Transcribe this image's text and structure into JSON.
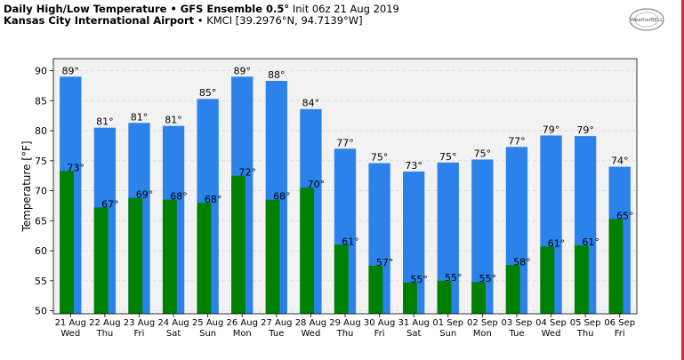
{
  "header": {
    "title_bold": "Daily High/Low Temperature • GFS Ensemble 0.5°",
    "title_rest": " Init 06z 21 Aug 2019",
    "subtitle_bold": "Kansas City International Airport",
    "subtitle_rest": " • KMCI [39.2976°N, 94.7139°W]"
  },
  "logo": {
    "icon": "weatherbell-logo",
    "text": "WeatherBELL"
  },
  "colors": {
    "high": "#2b82ea",
    "low": "#008000",
    "plot_bg": "#f2f2f2",
    "grid": "#d9d9d9",
    "accent_edge": "#c83232"
  },
  "chart_data": {
    "type": "bar",
    "ylabel": "Temperature [°F]",
    "ylim": [
      49.5,
      92
    ],
    "yticks": [
      50,
      55,
      60,
      65,
      70,
      75,
      80,
      85,
      90
    ],
    "grid": true,
    "categories": [
      {
        "date": "21 Aug",
        "day": "Wed"
      },
      {
        "date": "22 Aug",
        "day": "Thu"
      },
      {
        "date": "23 Aug",
        "day": "Fri"
      },
      {
        "date": "24 Aug",
        "day": "Sat"
      },
      {
        "date": "25 Aug",
        "day": "Sun"
      },
      {
        "date": "26 Aug",
        "day": "Mon"
      },
      {
        "date": "27 Aug",
        "day": "Tue"
      },
      {
        "date": "28 Aug",
        "day": "Wed"
      },
      {
        "date": "29 Aug",
        "day": "Thu"
      },
      {
        "date": "30 Aug",
        "day": "Fri"
      },
      {
        "date": "31 Aug",
        "day": "Sat"
      },
      {
        "date": "01 Sep",
        "day": "Sun"
      },
      {
        "date": "02 Sep",
        "day": "Mon"
      },
      {
        "date": "03 Sep",
        "day": "Tue"
      },
      {
        "date": "04 Sep",
        "day": "Wed"
      },
      {
        "date": "05 Sep",
        "day": "Thu"
      },
      {
        "date": "06 Sep",
        "day": "Fri"
      }
    ],
    "series": [
      {
        "values": [
          89,
          80.5,
          81.3,
          80.8,
          85.3,
          89,
          88.3,
          83.6,
          77,
          74.6,
          73.2,
          74.7,
          75.2,
          77.3,
          79.2,
          79.1,
          74
        ],
        "labels": [
          "89°",
          "81°",
          "81°",
          "81°",
          "85°",
          "89°",
          "88°",
          "84°",
          "77°",
          "75°",
          "73°",
          "75°",
          "75°",
          "77°",
          "79°",
          "79°",
          "74°"
        ]
      },
      {
        "values": [
          73.3,
          67.2,
          68.8,
          68.5,
          68,
          72.5,
          68.5,
          70.5,
          61,
          57.5,
          54.7,
          55,
          54.8,
          57.6,
          60.7,
          60.9,
          65.3
        ],
        "labels": [
          "73°",
          "67°",
          "69°",
          "68°",
          "68°",
          "72°",
          "68°",
          "70°",
          "61°",
          "57°",
          "55°",
          "55°",
          "55°",
          "58°",
          "61°",
          "61°",
          "65°"
        ]
      }
    ]
  }
}
